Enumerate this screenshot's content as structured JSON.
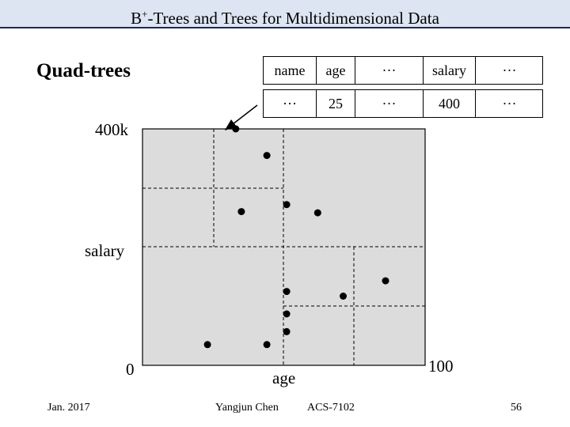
{
  "slide": {
    "title": "B+-Trees and Trees for Multidimensional Data",
    "heading": "Quad-trees"
  },
  "record": {
    "header": [
      "name",
      "age",
      "···",
      "salary",
      "···"
    ],
    "row": [
      "···",
      "25",
      "···",
      "400",
      "···"
    ]
  },
  "axes": {
    "y_max_label": "400k",
    "y_label": "salary",
    "y_min_label": "0",
    "x_label": "age",
    "x_max_label": "100"
  },
  "points": [
    {
      "age": 33,
      "salary": 400
    },
    {
      "age": 44,
      "salary": 355
    },
    {
      "age": 35,
      "salary": 260
    },
    {
      "age": 51,
      "salary": 272
    },
    {
      "age": 62,
      "salary": 258
    },
    {
      "age": 51,
      "salary": 125
    },
    {
      "age": 71,
      "salary": 117
    },
    {
      "age": 86,
      "salary": 143
    },
    {
      "age": 51,
      "salary": 87
    },
    {
      "age": 51,
      "salary": 57
    },
    {
      "age": 23,
      "salary": 35
    },
    {
      "age": 44,
      "salary": 35
    }
  ],
  "footer": {
    "date": "Jan. 2017",
    "author": "Yangjun Chen",
    "course": "ACS-7102",
    "page": "56"
  },
  "colors": {
    "title_bar": "#dde5f2",
    "plot_fill": "#dcdcdc"
  }
}
